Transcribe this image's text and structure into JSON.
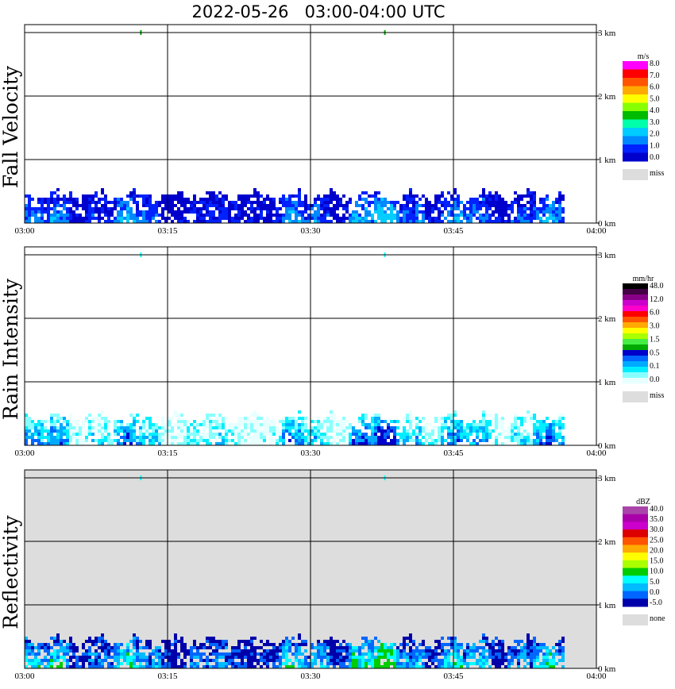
{
  "title": "2022-05-26   03:00-04:00 UTC",
  "chart_data": [
    {
      "type": "heatmap",
      "ylabel": "Fall Velocity",
      "xlabel": "",
      "x_ticks": [
        "03:00",
        "03:15",
        "03:30",
        "03:45",
        "04:00"
      ],
      "y_ticks": [
        "0 km",
        "1 km",
        "2 km",
        "3 km"
      ],
      "xlim": [
        0,
        60
      ],
      "ylim": [
        0,
        3
      ],
      "grid": true,
      "background": "#ffffff",
      "legend_unit": "m/s",
      "legend_colors": [
        "#0000cc",
        "#0022ff",
        "#0088ff",
        "#00ccff",
        "#00ffaa",
        "#00bb00",
        "#88ff00",
        "#ffff00",
        "#ffaa00",
        "#ff5500",
        "#ff0000",
        "#ff00ff"
      ],
      "legend_labels": [
        "0.0",
        "1.0",
        "2.0",
        "3.0",
        "4.0",
        "5.0",
        "6.0",
        "7.0",
        "8.0"
      ],
      "legend_missing": "miss",
      "precipitation_top_km": 0.6,
      "echo_window_min": [
        0,
        56.5
      ],
      "isolated_returns": [
        {
          "time_min": 12.2,
          "height_km": 3.0
        },
        {
          "time_min": 37.8,
          "height_km": 3.0
        }
      ]
    },
    {
      "type": "heatmap",
      "ylabel": "Rain Intensity",
      "xlabel": "",
      "x_ticks": [
        "03:00",
        "03:15",
        "03:30",
        "03:45",
        "04:00"
      ],
      "y_ticks": [
        "0 km",
        "1 km",
        "2 km",
        "3 km"
      ],
      "xlim": [
        0,
        60
      ],
      "ylim": [
        0,
        3
      ],
      "grid": true,
      "background": "#ffffff",
      "legend_unit": "mm/hr",
      "legend_colors": [
        "#e8ffff",
        "#88ffff",
        "#00eeff",
        "#00aaff",
        "#0066ff",
        "#0000cc",
        "#00aa00",
        "#44ee44",
        "#aaff00",
        "#ffff00",
        "#ffaa00",
        "#ff5500",
        "#ff0000",
        "#ff00cc",
        "#cc00cc",
        "#880088",
        "#440044",
        "#000000"
      ],
      "legend_labels": [
        "0.0",
        "0.1",
        "0.5",
        "1.5",
        "3.0",
        "6.0",
        "12.0",
        "48.0"
      ],
      "legend_missing": "miss",
      "precipitation_top_km": 0.6,
      "echo_window_min": [
        0,
        56.5
      ],
      "isolated_returns": [
        {
          "time_min": 12.2,
          "height_km": 3.0
        },
        {
          "time_min": 37.8,
          "height_km": 3.0
        }
      ]
    },
    {
      "type": "heatmap",
      "ylabel": "Reflectivity",
      "xlabel": "",
      "x_ticks": [
        "03:00",
        "03:15",
        "03:30",
        "03:45",
        "04:00"
      ],
      "y_ticks": [
        "0 km",
        "1 km",
        "2 km",
        "3 km"
      ],
      "xlim": [
        0,
        60
      ],
      "ylim": [
        0,
        3
      ],
      "grid": true,
      "background": "#dddddd",
      "legend_unit": "dBZ",
      "legend_colors": [
        "#0000aa",
        "#0066ff",
        "#00bbff",
        "#00ffff",
        "#00cc00",
        "#aaff00",
        "#ffff00",
        "#ffaa00",
        "#ff5500",
        "#dd0000",
        "#cc00cc",
        "#aa00aa",
        "#aa44aa"
      ],
      "legend_labels": [
        "-5.0",
        "0.0",
        "5.0",
        "10.0",
        "15.0",
        "20.0",
        "25.0",
        "30.0",
        "35.0",
        "40.0"
      ],
      "legend_missing": "none",
      "precipitation_top_km": 0.6,
      "echo_window_min": [
        0,
        56.5
      ],
      "isolated_returns": [
        {
          "time_min": 12.2,
          "height_km": 3.0
        },
        {
          "time_min": 37.8,
          "height_km": 3.0
        }
      ]
    }
  ]
}
